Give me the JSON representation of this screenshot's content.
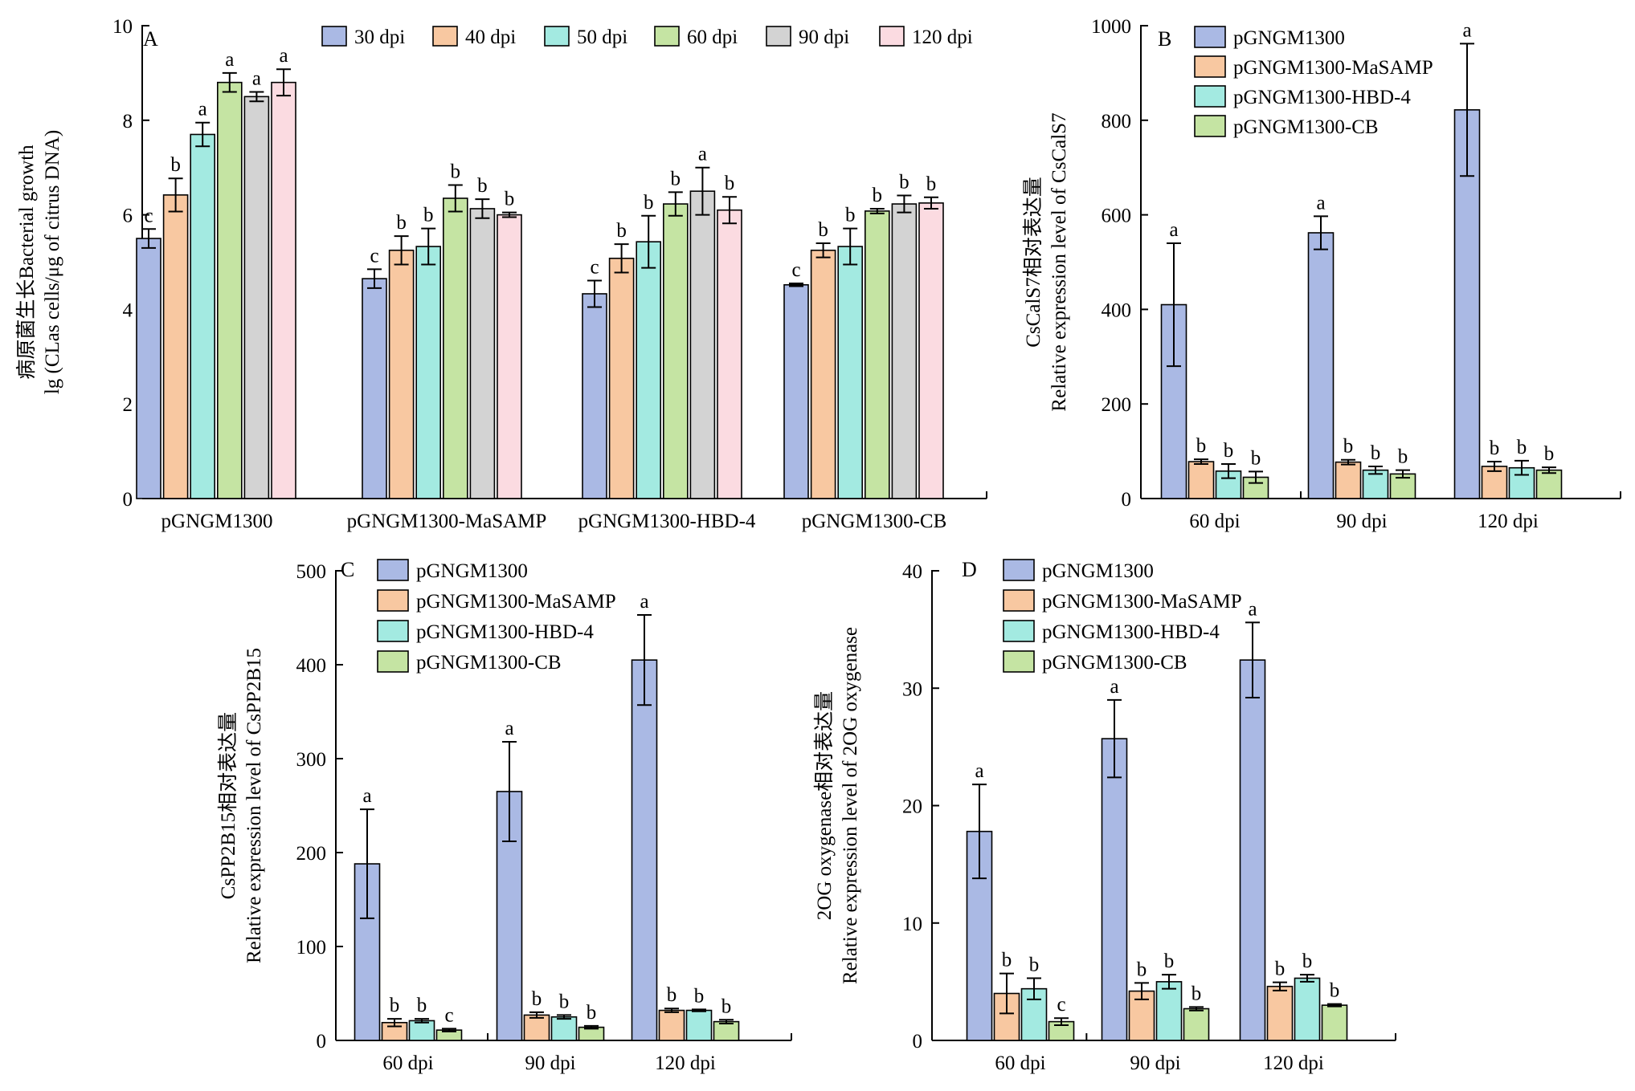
{
  "colors": {
    "s1": "#aab9e4",
    "s2": "#f8c8a1",
    "s3": "#a3eae1",
    "s4": "#c5e4a3",
    "s5": "#d3d3d3",
    "s6": "#fbdbe1"
  },
  "chart_data": [
    {
      "id": "A",
      "type": "bar",
      "panel_label": "A",
      "ylabel_lines": [
        "病原菌生长Bacterial growth",
        "lg (CLas cells/μg of citrus DNA)"
      ],
      "xlabel": "",
      "ylim": [
        0,
        10
      ],
      "yticks": [
        0,
        2,
        4,
        6,
        8,
        10
      ],
      "grid": false,
      "legend": "top, single row",
      "categories": [
        "pGNGM1300",
        "pGNGM1300-MaSAMP",
        "pGNGM1300-HBD-4",
        "pGNGM1300-CB"
      ],
      "series": [
        {
          "name": "30 dpi",
          "color_key": "s1",
          "values": [
            5.5,
            4.65,
            4.33,
            4.52
          ],
          "errors": [
            0.2,
            0.2,
            0.28,
            0.03
          ],
          "labels": [
            "c",
            "c",
            "c",
            "c"
          ]
        },
        {
          "name": "40 dpi",
          "color_key": "s2",
          "values": [
            6.42,
            5.25,
            5.08,
            5.25
          ],
          "errors": [
            0.35,
            0.3,
            0.3,
            0.15
          ],
          "labels": [
            "b",
            "b",
            "b",
            "b"
          ]
        },
        {
          "name": "50 dpi",
          "color_key": "s3",
          "values": [
            7.7,
            5.33,
            5.43,
            5.33
          ],
          "errors": [
            0.25,
            0.38,
            0.55,
            0.38
          ],
          "labels": [
            "a",
            "b",
            "b",
            "b"
          ]
        },
        {
          "name": "60 dpi",
          "color_key": "s4",
          "values": [
            8.8,
            6.35,
            6.23,
            6.08
          ],
          "errors": [
            0.2,
            0.28,
            0.25,
            0.05
          ],
          "labels": [
            "a",
            "b",
            "b",
            "b"
          ]
        },
        {
          "name": "90 dpi",
          "color_key": "s5",
          "values": [
            8.5,
            6.13,
            6.5,
            6.23
          ],
          "errors": [
            0.1,
            0.2,
            0.5,
            0.18
          ],
          "labels": [
            "a",
            "b",
            "a",
            "b"
          ]
        },
        {
          "name": "120 dpi",
          "color_key": "s6",
          "values": [
            8.8,
            6.0,
            6.1,
            6.25
          ],
          "errors": [
            0.28,
            0.05,
            0.28,
            0.12
          ],
          "labels": [
            "a",
            "b",
            "b",
            "b"
          ]
        }
      ]
    },
    {
      "id": "B",
      "type": "bar",
      "panel_label": "B",
      "ylabel_lines": [
        "CsCalS7相对表达量",
        "Relative expression level of CsCalS7"
      ],
      "xlabel": "",
      "ylim": [
        0,
        1000
      ],
      "yticks": [
        0,
        200,
        400,
        600,
        800,
        1000
      ],
      "grid": false,
      "legend": "top-left, vertical",
      "categories": [
        "60 dpi",
        "90 dpi",
        "120 dpi"
      ],
      "series": [
        {
          "name": "pGNGM1300",
          "color_key": "s1",
          "values": [
            410,
            562,
            822
          ],
          "errors": [
            130,
            35,
            140
          ],
          "labels": [
            "a",
            "a",
            "a"
          ]
        },
        {
          "name": "pGNGM1300-MaSAMP",
          "color_key": "s2",
          "values": [
            78,
            77,
            68
          ],
          "errors": [
            5,
            5,
            10
          ],
          "labels": [
            "b",
            "b",
            "b"
          ]
        },
        {
          "name": "pGNGM1300-HBD-4",
          "color_key": "s3",
          "values": [
            58,
            60,
            65
          ],
          "errors": [
            15,
            8,
            15
          ],
          "labels": [
            "b",
            "b",
            "b"
          ]
        },
        {
          "name": "pGNGM1300-CB",
          "color_key": "s4",
          "values": [
            45,
            52,
            60
          ],
          "errors": [
            12,
            8,
            6
          ],
          "labels": [
            "b",
            "b",
            "b"
          ]
        }
      ]
    },
    {
      "id": "C",
      "type": "bar",
      "panel_label": "C",
      "ylabel_lines": [
        "CsPP2B15相对表达量",
        "Relative expression level of CsPP2B15"
      ],
      "xlabel": "",
      "ylim": [
        0,
        500
      ],
      "yticks": [
        0,
        100,
        200,
        300,
        400,
        500
      ],
      "grid": false,
      "legend": "top-left, vertical",
      "categories": [
        "60 dpi",
        "90 dpi",
        "120 dpi"
      ],
      "series": [
        {
          "name": "pGNGM1300",
          "color_key": "s1",
          "values": [
            188,
            265,
            405
          ],
          "errors": [
            58,
            53,
            48
          ],
          "labels": [
            "a",
            "a",
            "a"
          ]
        },
        {
          "name": "pGNGM1300-MaSAMP",
          "color_key": "s2",
          "values": [
            19,
            27,
            32
          ],
          "errors": [
            4,
            3,
            2
          ],
          "labels": [
            "b",
            "b",
            "b"
          ]
        },
        {
          "name": "pGNGM1300-HBD-4",
          "color_key": "s3",
          "values": [
            21,
            25,
            32
          ],
          "errors": [
            2,
            2,
            1
          ],
          "labels": [
            "b",
            "b",
            "b"
          ]
        },
        {
          "name": "pGNGM1300-CB",
          "color_key": "s4",
          "values": [
            11,
            14,
            20
          ],
          "errors": [
            1.5,
            1.5,
            2
          ],
          "labels": [
            "c",
            "b",
            "b"
          ]
        }
      ]
    },
    {
      "id": "D",
      "type": "bar",
      "panel_label": "D",
      "ylabel_lines": [
        "2OG oxygenase相对表达量",
        "Relative expression level of 2OG oxygenase"
      ],
      "xlabel": "",
      "ylim": [
        0,
        40
      ],
      "yticks": [
        0,
        10,
        20,
        30,
        40
      ],
      "grid": false,
      "legend": "top-left, vertical",
      "categories": [
        "60 dpi",
        "90 dpi",
        "120 dpi"
      ],
      "series": [
        {
          "name": "pGNGM1300",
          "color_key": "s1",
          "values": [
            17.8,
            25.7,
            32.4
          ],
          "errors": [
            4,
            3.3,
            3.2
          ],
          "labels": [
            "a",
            "a",
            "a"
          ]
        },
        {
          "name": "pGNGM1300-MaSAMP",
          "color_key": "s2",
          "values": [
            4.0,
            4.2,
            4.6
          ],
          "errors": [
            1.7,
            0.7,
            0.35
          ],
          "labels": [
            "b",
            "b",
            "b"
          ]
        },
        {
          "name": "pGNGM1300-HBD-4",
          "color_key": "s3",
          "values": [
            4.4,
            5.0,
            5.3
          ],
          "errors": [
            0.9,
            0.6,
            0.3
          ],
          "labels": [
            "b",
            "b",
            "b"
          ]
        },
        {
          "name": "pGNGM1300-CB",
          "color_key": "s4",
          "values": [
            1.6,
            2.7,
            3.0
          ],
          "errors": [
            0.3,
            0.15,
            0.1
          ],
          "labels": [
            "c",
            "b",
            "b"
          ]
        }
      ]
    }
  ]
}
